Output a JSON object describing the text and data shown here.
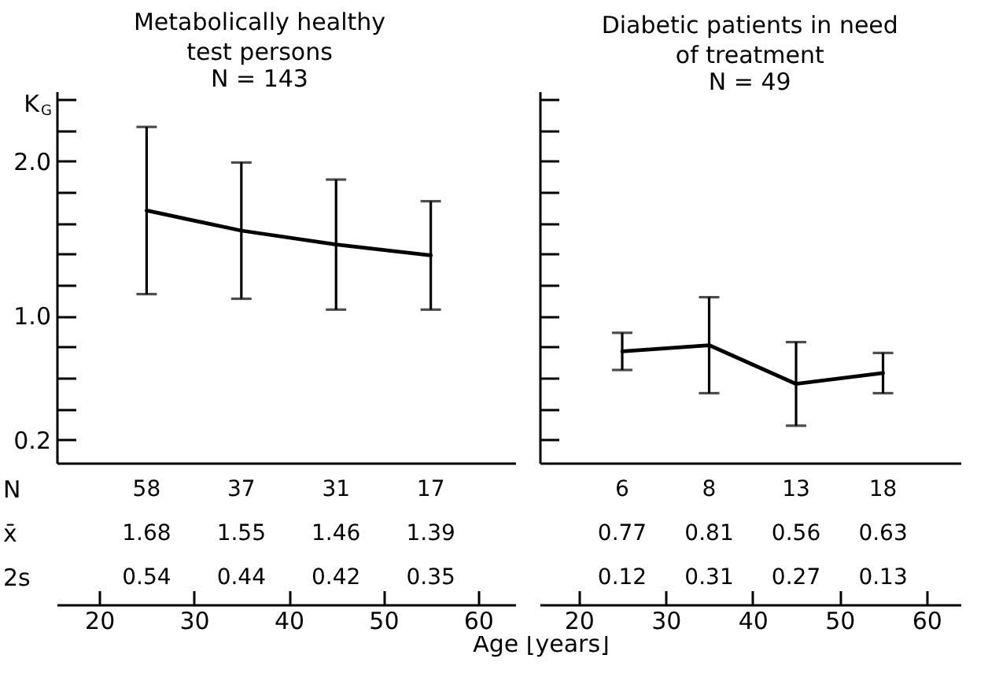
{
  "chart_data": [
    {
      "type": "line",
      "title": "Metabolically healthy\ntest persons",
      "subtitle": "N = 143",
      "xlabel": "Age [years]",
      "ylabel": "K$_{G}$",
      "x": [
        25,
        35,
        45,
        55
      ],
      "series": [
        {
          "color": "#000000",
          "values": [
            1.68,
            1.55,
            1.46,
            1.39
          ],
          "errors": [
            0.54,
            0.44,
            0.42,
            0.35
          ]
        }
      ],
      "xlim": [
        15.5,
        64
      ],
      "xticks": [
        20,
        30,
        40,
        50,
        60
      ],
      "ylim": [
        0.05,
        2.45
      ],
      "yticks": [
        0.2,
        {
          "value": 0.4,
          "label": null
        },
        {
          "value": 0.6,
          "label": null
        },
        {
          "value": 0.8,
          "label": null
        },
        {
          "value": 1,
          "label": "1.0"
        },
        {
          "value": 1.2,
          "label": null
        },
        {
          "value": 1.4,
          "label": null
        },
        {
          "value": 1.6,
          "label": null
        },
        {
          "value": 1.8,
          "label": null
        },
        {
          "value": 2,
          "label": "2.0"
        },
        {
          "value": 2.2,
          "label": null
        },
        {
          "value": 2.4,
          "label": null
        }
      ],
      "annotations": [
        "N",
        "x̄",
        "2s",
        "58",
        "37",
        "31",
        "17",
        "1.68",
        "1.55",
        "1.46",
        "1.39",
        "0.54",
        "0.44",
        "0.42",
        "0.35"
      ]
    },
    {
      "type": "line",
      "title": "Diabetic patients in need\nof treatment",
      "subtitle": "N = 49",
      "x": [
        25,
        35,
        45,
        55
      ],
      "series": [
        {
          "color": "#000000",
          "values": [
            0.77,
            0.81,
            0.56,
            0.63
          ],
          "errors": [
            0.12,
            0.31,
            0.27,
            0.13
          ]
        }
      ],
      "xlim": [
        15.5,
        64
      ],
      "xticks": [
        20,
        30,
        40,
        50,
        60
      ],
      "ylim": [
        0.05,
        2.45
      ],
      "yticks": [
        {
          "value": 0.2,
          "label": null
        },
        {
          "value": 0.4,
          "label": null
        },
        {
          "value": 0.6,
          "label": null
        },
        {
          "value": 0.8,
          "label": null
        },
        {
          "value": 1,
          "label": null
        },
        {
          "value": 1.2,
          "label": null
        },
        {
          "value": 1.4,
          "label": null
        },
        {
          "value": 1.6,
          "label": null
        },
        {
          "value": 1.8,
          "label": null
        },
        {
          "value": 2,
          "label": null
        },
        {
          "value": 2.2,
          "label": null
        },
        {
          "value": 2.4,
          "label": null
        }
      ],
      "tick_labels": "x",
      "annotations": [
        "6",
        "8",
        "13",
        "18",
        "0.77",
        "0.81",
        "0.56",
        "0.63",
        "0.12",
        "0.31",
        "0.27",
        "0.13"
      ]
    }
  ]
}
